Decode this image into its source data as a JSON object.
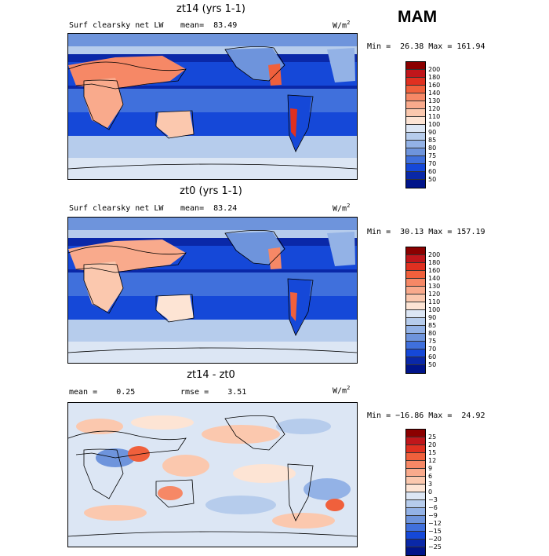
{
  "season": "MAM",
  "panels": [
    {
      "title": "zt14 (yrs 1-1)",
      "variable": "Surf clearsky net LW",
      "stat_left": "mean=  83.49",
      "units": "W/m",
      "units_exp": "2",
      "minmax": "Min =  26.38 Max = 161.94",
      "levels": [
        "200",
        "180",
        "160",
        "140",
        "130",
        "120",
        "110",
        "100",
        "90",
        "85",
        "80",
        "75",
        "70",
        "60",
        "50"
      ],
      "colors": [
        "#8b0000",
        "#c0161b",
        "#e03020",
        "#f0603c",
        "#f68866",
        "#f9aa8c",
        "#fbc8ae",
        "#fde4d4",
        "#dce6f4",
        "#b6ccec",
        "#93b2e6",
        "#6e94dc",
        "#4070dc",
        "#1548d8",
        "#0a28a8",
        "#00148a"
      ]
    },
    {
      "title": "zt0 (yrs 1-1)",
      "variable": "Surf clearsky net LW",
      "stat_left": "mean=  83.24",
      "units": "W/m",
      "units_exp": "2",
      "minmax": "Min =  30.13 Max = 157.19",
      "levels": [
        "200",
        "180",
        "160",
        "140",
        "130",
        "120",
        "110",
        "100",
        "90",
        "85",
        "80",
        "75",
        "70",
        "60",
        "50"
      ],
      "colors": [
        "#8b0000",
        "#c0161b",
        "#e03020",
        "#f0603c",
        "#f68866",
        "#f9aa8c",
        "#fbc8ae",
        "#fde4d4",
        "#dce6f4",
        "#b6ccec",
        "#93b2e6",
        "#6e94dc",
        "#4070dc",
        "#1548d8",
        "#0a28a8",
        "#00148a"
      ]
    },
    {
      "title": "zt14 - zt0",
      "stat_left": "mean =    0.25",
      "stat_right": "rmse =    3.51",
      "units": "W/m",
      "units_exp": "2",
      "minmax": "Min = −16.86 Max =  24.92",
      "levels": [
        "25",
        "20",
        "15",
        "12",
        "9",
        "6",
        "3",
        "0",
        "−3",
        "−6",
        "−9",
        "−12",
        "−15",
        "−20",
        "−25"
      ],
      "colors": [
        "#8b0000",
        "#c0161b",
        "#e03020",
        "#f0603c",
        "#f68866",
        "#f9aa8c",
        "#fbc8ae",
        "#fde4d4",
        "#dce6f4",
        "#b6ccec",
        "#93b2e6",
        "#6e94dc",
        "#4070dc",
        "#1548d8",
        "#0a28a8",
        "#00148a"
      ]
    }
  ]
}
